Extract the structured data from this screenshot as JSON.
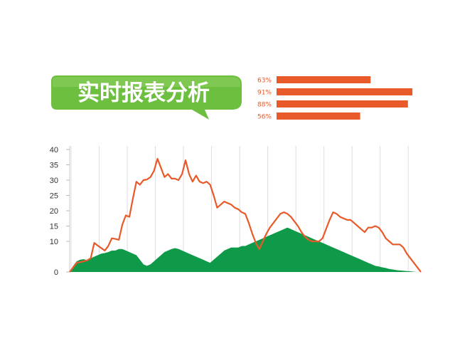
{
  "banner": {
    "title": "实时报表分析"
  },
  "colors": {
    "accent_orange": "#e85a2a",
    "area_green": "#0e9a48",
    "banner_green": "#6cbf3f",
    "gridline": "#dddddd"
  },
  "chart_data": [
    {
      "type": "bar",
      "orientation": "horizontal",
      "data_labels": [
        "63%",
        "91%",
        "88%",
        "56%"
      ],
      "values": [
        63,
        91,
        88,
        56
      ],
      "xlim": [
        0,
        100
      ],
      "title": "",
      "color": "#e85a2a"
    },
    {
      "type": "line",
      "title": "",
      "xlabel": "",
      "ylabel": "",
      "ylim": [
        0,
        40
      ],
      "yticks": [
        "40",
        "35",
        "30",
        "25",
        "20",
        "15",
        "10",
        "0"
      ],
      "grid": true,
      "x": [
        0,
        1,
        2,
        3,
        4,
        5,
        6,
        7,
        8,
        9,
        10,
        11,
        12,
        13,
        14,
        15,
        16,
        17,
        18,
        19,
        20,
        21,
        22,
        23,
        24,
        25,
        26,
        27,
        28,
        29,
        30,
        31,
        32,
        33,
        34,
        35,
        36,
        37,
        38,
        39,
        40,
        41,
        42,
        43,
        44,
        45,
        46,
        47,
        48,
        49,
        50,
        51,
        52,
        53,
        54,
        55,
        56,
        57,
        58,
        59,
        60,
        61,
        62,
        63,
        64,
        65,
        66,
        67,
        68,
        69,
        70,
        71,
        72,
        73,
        74,
        75,
        76,
        77,
        78,
        79,
        80,
        81,
        82,
        83,
        84,
        85,
        86,
        87,
        88,
        89,
        90,
        91,
        92,
        93,
        94,
        95,
        96,
        97,
        98,
        99,
        100
      ],
      "series": [
        {
          "color": "#e85a2a",
          "style": "line",
          "values": [
            0,
            1.5,
            3.0,
            3.2,
            3.5,
            3.8,
            4.5,
            9.5,
            8.6,
            7.8,
            7.0,
            8.5,
            11.0,
            10.8,
            10.5,
            15.5,
            18.5,
            18.0,
            24.0,
            29.5,
            28.5,
            30.0,
            30.2,
            31.0,
            33.0,
            37.0,
            34.0,
            31.0,
            32.0,
            30.5,
            30.5,
            30.0,
            32.0,
            36.5,
            32.0,
            29.5,
            31.5,
            29.5,
            29.0,
            29.5,
            28.5,
            25.0,
            21.0,
            22.0,
            23.0,
            22.5,
            22.0,
            21.0,
            20.5,
            19.5,
            19.0,
            16.0,
            12.5,
            9.5,
            7.5,
            10.0,
            12.5,
            14.5,
            16.0,
            17.5,
            19.0,
            19.5,
            19.0,
            18.0,
            16.5,
            15.0,
            13.0,
            11.5,
            10.5,
            10.0,
            10.0,
            10.0,
            11.0,
            14.0,
            17.0,
            19.5,
            19.0,
            18.0,
            17.5,
            17.0,
            17.0,
            16.0,
            15.0,
            14.0,
            13.0,
            14.5,
            14.5,
            15.0,
            14.5,
            13.0,
            11.0,
            10.0,
            9.0,
            9.0,
            9.0,
            8.0,
            6.0,
            4.5,
            3.0,
            1.5,
            0.0
          ]
        },
        {
          "color": "#0e9a48",
          "style": "area",
          "values": [
            0,
            2.0,
            3.5,
            4.0,
            4.2,
            3.8,
            4.5,
            5.0,
            5.5,
            6.0,
            6.2,
            6.5,
            7.0,
            7.0,
            7.5,
            7.5,
            7.0,
            6.5,
            6.0,
            5.5,
            4.0,
            2.5,
            2.0,
            2.5,
            3.5,
            4.5,
            5.5,
            6.5,
            7.0,
            7.5,
            7.8,
            7.5,
            7.0,
            6.5,
            6.0,
            5.5,
            5.0,
            4.5,
            4.0,
            3.5,
            3.0,
            4.0,
            5.0,
            6.0,
            7.0,
            7.5,
            8.0,
            8.0,
            8.0,
            8.5,
            8.5,
            9.0,
            9.5,
            10.0,
            10.5,
            11.0,
            11.5,
            12.0,
            12.5,
            13.0,
            13.5,
            14.0,
            14.5,
            14.0,
            13.5,
            13.0,
            12.5,
            12.0,
            11.5,
            11.0,
            10.5,
            10.0,
            9.5,
            9.0,
            8.5,
            8.0,
            7.5,
            7.0,
            6.5,
            6.0,
            5.5,
            5.0,
            4.5,
            4.0,
            3.5,
            3.0,
            2.5,
            2.0,
            1.8,
            1.5,
            1.3,
            1.0,
            0.8,
            0.6,
            0.5,
            0.4,
            0.3,
            0.2,
            0.1,
            0.0,
            0
          ]
        }
      ]
    }
  ]
}
